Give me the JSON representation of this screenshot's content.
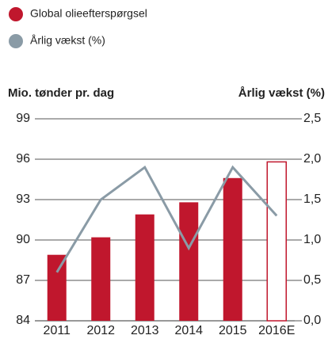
{
  "chart_data": {
    "type": "bar-line",
    "categories": [
      "2011",
      "2012",
      "2013",
      "2014",
      "2015",
      "2016E"
    ],
    "ylabel": "Mio. tønder pr. dag",
    "y2label": "Årlig vækst (%)",
    "series": [
      {
        "name": "Global olieefterspørgsel",
        "color": "#c0172d",
        "type": "bar",
        "values": [
          88.9,
          90.2,
          91.9,
          92.8,
          94.6,
          95.8
        ]
      },
      {
        "name": "Årlig vækst (%)",
        "color": "#8a9ba6",
        "type": "line",
        "axis": "y2",
        "values": [
          0.6,
          1.5,
          1.9,
          0.9,
          1.9,
          1.3
        ]
      }
    ],
    "hollow_last": true,
    "ylim": [
      84,
      99
    ],
    "yticks": [
      84,
      87,
      90,
      93,
      96,
      99
    ],
    "y2lim": [
      0,
      2.5
    ],
    "y2ticks": [
      {
        "value": 0,
        "label": "0,0"
      },
      {
        "value": 0.5,
        "label": "0,5"
      },
      {
        "value": 1,
        "label": "1,0"
      },
      {
        "value": 1.5,
        "label": "1,5"
      },
      {
        "value": 2,
        "label": "2,0"
      },
      {
        "value": 2.5,
        "label": "2,5"
      }
    ],
    "grid": true
  }
}
